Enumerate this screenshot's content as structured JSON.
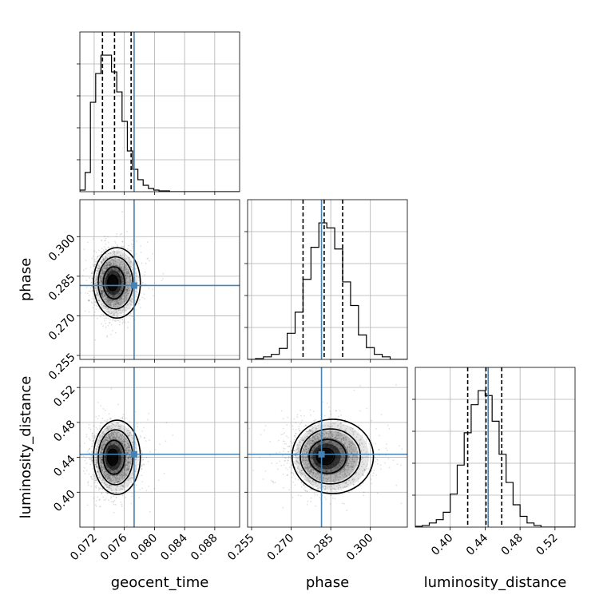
{
  "chart_data": {
    "type": "corner",
    "parameters": [
      "geocent_time",
      "phase",
      "luminosity_distance"
    ],
    "xlabels": [
      "geocent_time",
      "phase",
      "luminosity_distance"
    ],
    "ylabels": [
      "",
      "phase",
      "luminosity_distance"
    ],
    "ranges": {
      "geocent_time": [
        0.0701,
        0.0913
      ],
      "phase": [
        0.2535,
        0.314
      ],
      "luminosity_distance": [
        0.36,
        0.543
      ]
    },
    "ticks": {
      "geocent_time": [
        0.072,
        0.076,
        0.08,
        0.084,
        0.088
      ],
      "phase": [
        0.255,
        0.27,
        0.285,
        0.3
      ],
      "luminosity_distance": [
        0.4,
        0.44,
        0.48,
        0.52
      ]
    },
    "tick_labels": {
      "geocent_time": [
        "0.072",
        "0.076",
        "0.080",
        "0.084",
        "0.088"
      ],
      "phase": [
        "0.255",
        "0.270",
        "0.285",
        "0.300"
      ],
      "luminosity_distance": [
        "0.40",
        "0.44",
        "0.48",
        "0.52"
      ]
    },
    "truths": {
      "geocent_time": 0.0773,
      "phase": 0.2815,
      "luminosity_distance": 0.4435
    },
    "quantiles": {
      "geocent_time": [
        0.0731,
        0.0747,
        0.0769
      ],
      "phase": [
        0.2745,
        0.2825,
        0.2895
      ],
      "luminosity_distance": [
        0.42,
        0.441,
        0.459
      ]
    },
    "histograms": {
      "geocent_time": {
        "bin_edges": [
          0.0701,
          0.0708,
          0.0715,
          0.0722,
          0.0729,
          0.0736,
          0.0743,
          0.075,
          0.0757,
          0.0764,
          0.0771,
          0.0778,
          0.0785,
          0.0792,
          0.0799,
          0.0806,
          0.0813,
          0.082,
          0.0827,
          0.0834
        ],
        "counts": [
          2,
          24,
          112,
          148,
          171,
          171,
          150,
          125,
          88,
          51,
          28,
          15,
          8,
          4,
          2,
          1,
          1,
          0,
          0
        ]
      },
      "phase": {
        "bin_edges": [
          0.2535,
          0.2565,
          0.2595,
          0.2625,
          0.2655,
          0.2685,
          0.2715,
          0.2745,
          0.2775,
          0.2805,
          0.2835,
          0.2865,
          0.2895,
          0.2925,
          0.2955,
          0.2985,
          0.3015,
          0.3045,
          0.3075,
          0.3105,
          0.314
        ],
        "counts": [
          0,
          1,
          3,
          6,
          13,
          31,
          56,
          95,
          133,
          162,
          156,
          131,
          92,
          64,
          29,
          14,
          6,
          3,
          0,
          0
        ]
      },
      "luminosity_distance": {
        "bin_edges": [
          0.36,
          0.368,
          0.376,
          0.384,
          0.392,
          0.4,
          0.408,
          0.416,
          0.424,
          0.432,
          0.44,
          0.448,
          0.456,
          0.464,
          0.472,
          0.48,
          0.488,
          0.496,
          0.504,
          0.512,
          0.52
        ],
        "counts": [
          1,
          2,
          5,
          9,
          18,
          40,
          75,
          114,
          148,
          165,
          159,
          128,
          88,
          54,
          27,
          13,
          5,
          2,
          0,
          0
        ]
      }
    },
    "pair_densities": [
      {
        "x": "geocent_time",
        "y": "phase",
        "center": [
          0.0743,
          0.2825
        ],
        "sigma": [
          0.00125,
          0.0058
        ],
        "rho": 0.05
      },
      {
        "x": "geocent_time",
        "y": "luminosity_distance",
        "center": [
          0.0743,
          0.44
        ],
        "sigma": [
          0.00125,
          0.0185
        ],
        "rho": 0.0
      },
      {
        "x": "phase",
        "y": "luminosity_distance",
        "center": [
          0.2822,
          0.441
        ],
        "sigma": [
          0.0062,
          0.0185
        ],
        "rho": 0.0
      }
    ],
    "grid": true,
    "truth_color": "#4682b4",
    "hist_color": "#000000"
  }
}
